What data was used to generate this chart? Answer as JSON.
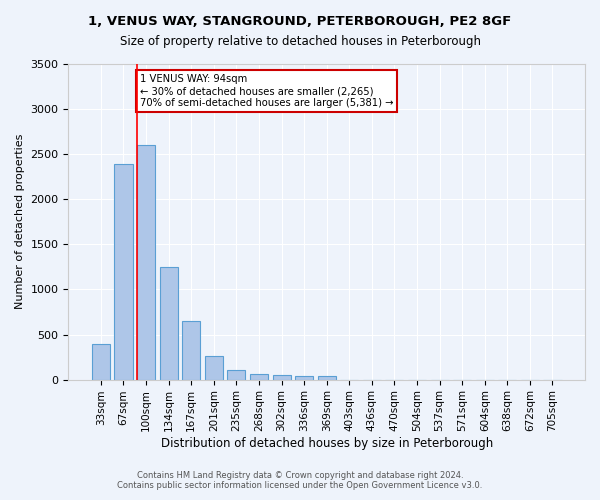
{
  "title": "1, VENUS WAY, STANGROUND, PETERBOROUGH, PE2 8GF",
  "subtitle": "Size of property relative to detached houses in Peterborough",
  "xlabel": "Distribution of detached houses by size in Peterborough",
  "ylabel": "Number of detached properties",
  "footer_line1": "Contains HM Land Registry data © Crown copyright and database right 2024.",
  "footer_line2": "Contains public sector information licensed under the Open Government Licence v3.0.",
  "bar_labels": [
    "33sqm",
    "67sqm",
    "100sqm",
    "134sqm",
    "167sqm",
    "201sqm",
    "235sqm",
    "268sqm",
    "302sqm",
    "336sqm",
    "369sqm",
    "403sqm",
    "436sqm",
    "470sqm",
    "504sqm",
    "537sqm",
    "571sqm",
    "604sqm",
    "638sqm",
    "672sqm",
    "705sqm"
  ],
  "bar_values": [
    390,
    2390,
    2600,
    1250,
    650,
    265,
    110,
    58,
    52,
    45,
    35,
    0,
    0,
    0,
    0,
    0,
    0,
    0,
    0,
    0,
    0
  ],
  "bar_color": "#aec6e8",
  "bar_edge_color": "#5a9fd4",
  "bg_color": "#eef3fb",
  "grid_color": "#ffffff",
  "red_line_x": 1.58,
  "annotation_text": "1 VENUS WAY: 94sqm\n← 30% of detached houses are smaller (2,265)\n70% of semi-detached houses are larger (5,381) →",
  "annotation_box_color": "#ffffff",
  "annotation_box_edge": "#cc0000",
  "ylim": [
    0,
    3500
  ],
  "yticks": [
    0,
    500,
    1000,
    1500,
    2000,
    2500,
    3000,
    3500
  ]
}
